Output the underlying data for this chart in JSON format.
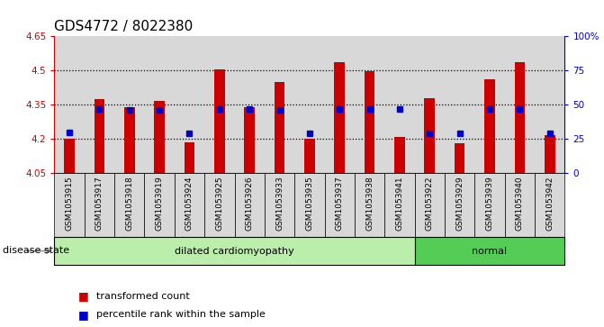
{
  "title": "GDS4772 / 8022380",
  "samples": [
    "GSM1053915",
    "GSM1053917",
    "GSM1053918",
    "GSM1053919",
    "GSM1053924",
    "GSM1053925",
    "GSM1053926",
    "GSM1053933",
    "GSM1053935",
    "GSM1053937",
    "GSM1053938",
    "GSM1053941",
    "GSM1053922",
    "GSM1053929",
    "GSM1053939",
    "GSM1053940",
    "GSM1053942"
  ],
  "bar_tops": [
    4.202,
    4.375,
    4.337,
    4.368,
    4.187,
    4.505,
    4.337,
    4.449,
    4.202,
    4.535,
    4.495,
    4.207,
    4.38,
    4.183,
    4.46,
    4.535,
    4.215
  ],
  "blue_dots": [
    4.228,
    4.332,
    4.327,
    4.327,
    4.223,
    4.332,
    4.332,
    4.327,
    4.223,
    4.332,
    4.332,
    4.332,
    4.223,
    4.223,
    4.332,
    4.332,
    4.223
  ],
  "bar_base": 4.05,
  "ylim_left": [
    4.05,
    4.65
  ],
  "yticks_left": [
    4.05,
    4.2,
    4.35,
    4.5,
    4.65
  ],
  "ytick_labels_left": [
    "4.05",
    "4.2",
    "4.35",
    "4.5",
    "4.65"
  ],
  "ylim_right": [
    0,
    100
  ],
  "yticks_right": [
    0,
    25,
    50,
    75,
    100
  ],
  "ytick_labels_right": [
    "0",
    "25",
    "50",
    "75",
    "100%"
  ],
  "hlines": [
    4.2,
    4.35,
    4.5
  ],
  "bar_color": "#cc0000",
  "dot_color": "#0000cc",
  "group_labels": [
    "dilated cardiomyopathy",
    "normal"
  ],
  "group_counts": [
    12,
    5
  ],
  "group_colors": [
    "#bbeeaa",
    "#55cc55"
  ],
  "sample_box_color": "#d8d8d8",
  "disease_state_label": "disease state",
  "legend_items": [
    "transformed count",
    "percentile rank within the sample"
  ],
  "title_fontsize": 11,
  "tick_fontsize": 7.5,
  "sample_fontsize": 6.5,
  "legend_fontsize": 8
}
